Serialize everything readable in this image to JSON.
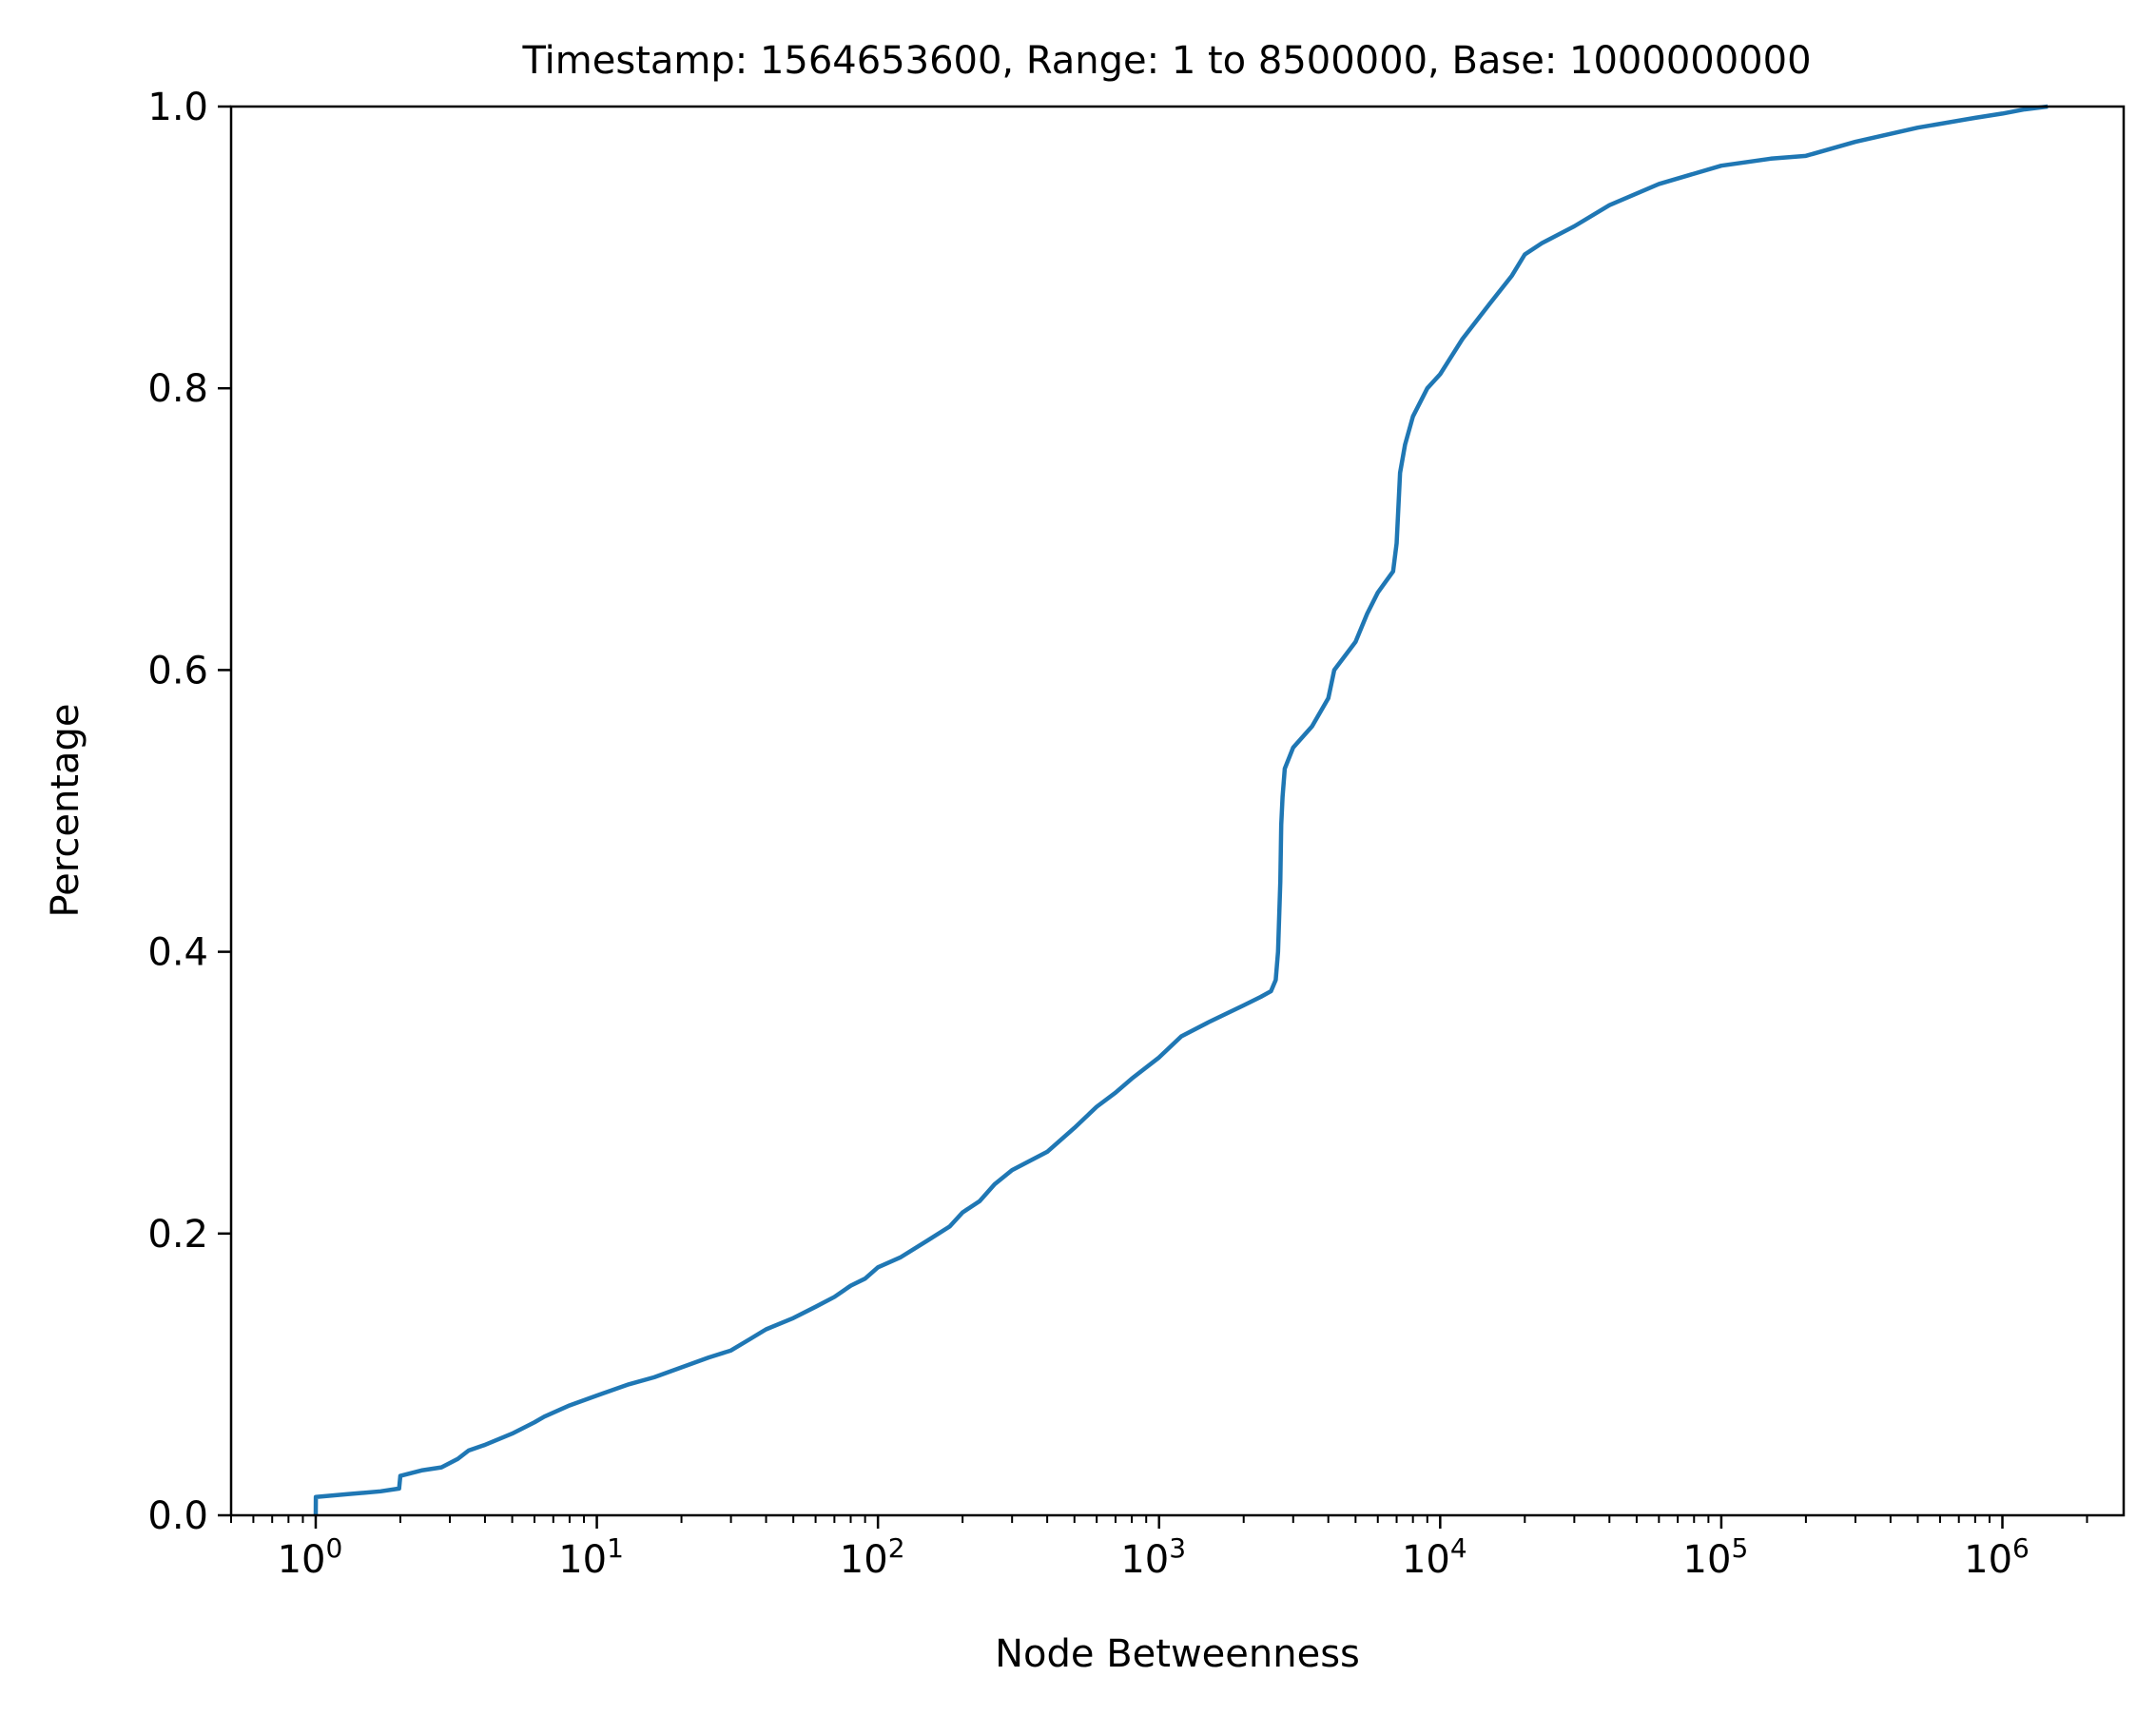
{
  "chart_data": {
    "type": "line",
    "title": "Timestamp: 1564653600, Range: 1 to 8500000, Base: 1000000000",
    "xlabel": "Node Betweenness",
    "ylabel": "Percentage",
    "x_scale": "log",
    "xlim": [
      0.5,
      2700000
    ],
    "ylim": [
      0.0,
      1.0
    ],
    "grid": false,
    "line_color": "#1f77b4",
    "x_ticks": [
      {
        "base": "10",
        "exp": "0",
        "value": 1
      },
      {
        "base": "10",
        "exp": "1",
        "value": 10
      },
      {
        "base": "10",
        "exp": "2",
        "value": 100
      },
      {
        "base": "10",
        "exp": "3",
        "value": 1000
      },
      {
        "base": "10",
        "exp": "4",
        "value": 10000
      },
      {
        "base": "10",
        "exp": "5",
        "value": 100000
      },
      {
        "base": "10",
        "exp": "6",
        "value": 1000000
      }
    ],
    "y_ticks": [
      {
        "label": "0.0",
        "value": 0.0
      },
      {
        "label": "0.2",
        "value": 0.2
      },
      {
        "label": "0.4",
        "value": 0.4
      },
      {
        "label": "0.6",
        "value": 0.6
      },
      {
        "label": "0.8",
        "value": 0.8
      },
      {
        "label": "1.0",
        "value": 1.0
      }
    ],
    "series": [
      {
        "x": [
          1,
          1.001,
          1.3,
          1.7,
          1.98,
          2.0,
          2.4,
          2.8,
          3.2,
          3.5,
          4.0,
          5.0,
          6.0,
          6.5,
          8.0,
          10,
          13,
          16,
          20,
          25,
          30,
          35,
          40,
          50,
          60,
          70,
          80,
          90,
          100,
          120,
          150,
          180,
          200,
          230,
          260,
          300,
          400,
          500,
          600,
          700,
          800,
          1000,
          1200,
          1500,
          2000,
          2300,
          2500,
          2600,
          2650,
          2700,
          2720,
          2750,
          2800,
          3000,
          3500,
          4000,
          4200,
          5000,
          5500,
          6000,
          6800,
          7000,
          7200,
          7500,
          8000,
          9000,
          10000,
          12000,
          15000,
          18000,
          20000,
          23000,
          30000,
          40000,
          60000,
          100000,
          150000,
          200000,
          300000,
          500000,
          800000,
          1000000,
          1200000,
          1450000
        ],
        "y": [
          0.0,
          0.013,
          0.015,
          0.017,
          0.019,
          0.028,
          0.032,
          0.034,
          0.04,
          0.046,
          0.05,
          0.058,
          0.066,
          0.07,
          0.078,
          0.085,
          0.093,
          0.098,
          0.105,
          0.112,
          0.117,
          0.125,
          0.132,
          0.14,
          0.148,
          0.155,
          0.163,
          0.168,
          0.176,
          0.183,
          0.195,
          0.205,
          0.215,
          0.223,
          0.235,
          0.245,
          0.258,
          0.275,
          0.29,
          0.3,
          0.31,
          0.325,
          0.34,
          0.35,
          0.362,
          0.368,
          0.372,
          0.38,
          0.4,
          0.45,
          0.49,
          0.51,
          0.53,
          0.545,
          0.56,
          0.58,
          0.6,
          0.62,
          0.64,
          0.655,
          0.67,
          0.69,
          0.74,
          0.76,
          0.78,
          0.8,
          0.81,
          0.835,
          0.86,
          0.88,
          0.895,
          0.903,
          0.915,
          0.93,
          0.945,
          0.958,
          0.963,
          0.965,
          0.975,
          0.985,
          0.992,
          0.995,
          0.998,
          1.0
        ]
      }
    ]
  }
}
